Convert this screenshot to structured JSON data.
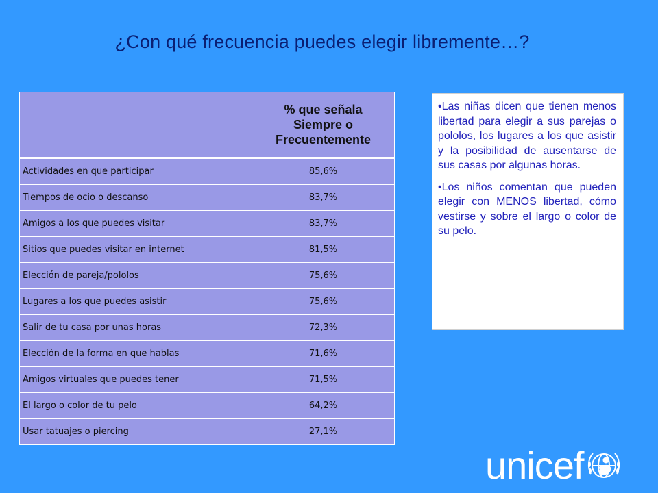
{
  "title": "¿Con qué frecuencia puedes elegir libremente…?",
  "table": {
    "header": [
      "% que señala",
      "Siempre o",
      "Frecuentemente"
    ],
    "rows": [
      {
        "label": "Actividades en que participar",
        "value": "85,6%"
      },
      {
        "label": "Tiempos de ocio o descanso",
        "value": "83,7%"
      },
      {
        "label": "Amigos a los que puedes visitar",
        "value": "83,7%"
      },
      {
        "label": "Sitios que puedes visitar en internet",
        "value": "81,5%"
      },
      {
        "label": "Elección de pareja/pololos",
        "value": "75,6%"
      },
      {
        "label": "Lugares a los que puedes asistir",
        "value": "75,6%"
      },
      {
        "label": "Salir de tu casa por unas horas",
        "value": "72,3%"
      },
      {
        "label": "Elección de la forma en que hablas",
        "value": "71,6%"
      },
      {
        "label": "Amigos virtuales que puedes tener",
        "value": "71,5%"
      },
      {
        "label": "El largo o color de tu pelo",
        "value": "64,2%"
      },
      {
        "label": "Usar tatuajes o piercing",
        "value": "27,1%"
      }
    ]
  },
  "notes": [
    "•Las niñas dicen que tienen menos libertad para elegir a sus parejas o pololos, los lugares a los que asistir y la posibilidad de ausentarse de sus casas por algunas horas.",
    "•Los niños comentan que pueden elegir con MENOS libertad, cómo vestirse y sobre el largo o color de su pelo."
  ],
  "logo": {
    "text": "unicef",
    "icon": "unicef-emblem-icon"
  },
  "colors": {
    "background": "#3399ff",
    "table_fill": "#9999e6",
    "title": "#0a1f73",
    "note_text": "#2222bb"
  }
}
